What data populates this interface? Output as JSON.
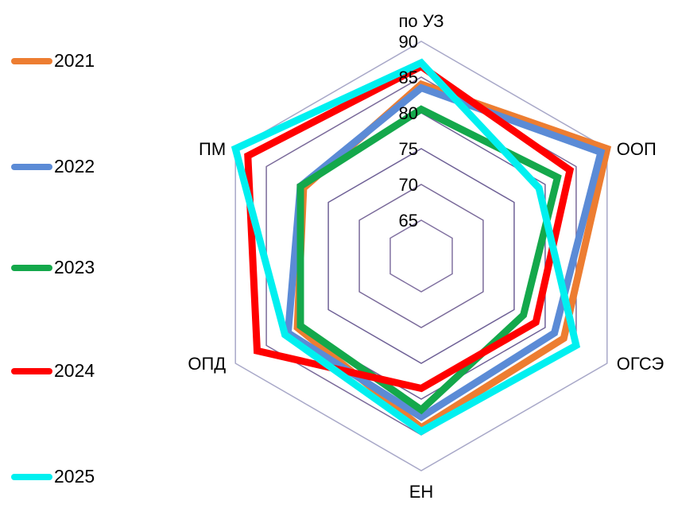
{
  "chart_data": {
    "type": "radar",
    "title": "",
    "categories": [
      "по УЗ",
      "ООП",
      "ОГСЭ",
      "ЕН",
      "ОПД",
      "ПМ"
    ],
    "rlim": [
      60,
      90
    ],
    "ticks": [
      65,
      70,
      75,
      80,
      85,
      90
    ],
    "grid": true,
    "legend_position": "left",
    "series": [
      {
        "name": "2021",
        "color": "#ED7D31",
        "values": [
          84,
          90,
          83,
          84,
          80,
          79
        ]
      },
      {
        "name": "2022",
        "color": "#5B8BD6",
        "values": [
          83.5,
          89,
          81.5,
          82.5,
          81.5,
          79.5
        ]
      },
      {
        "name": "2023",
        "color": "#14A84B",
        "values": [
          80.5,
          82,
          76.5,
          81.5,
          79.5,
          79.5
        ]
      },
      {
        "name": "2024",
        "color": "#FF0000",
        "values": [
          86.5,
          84,
          78.5,
          78.5,
          86.5,
          88
        ]
      },
      {
        "name": "2025",
        "color": "#00F0F0",
        "values": [
          87,
          79,
          85,
          84.5,
          82,
          90
        ]
      }
    ]
  }
}
